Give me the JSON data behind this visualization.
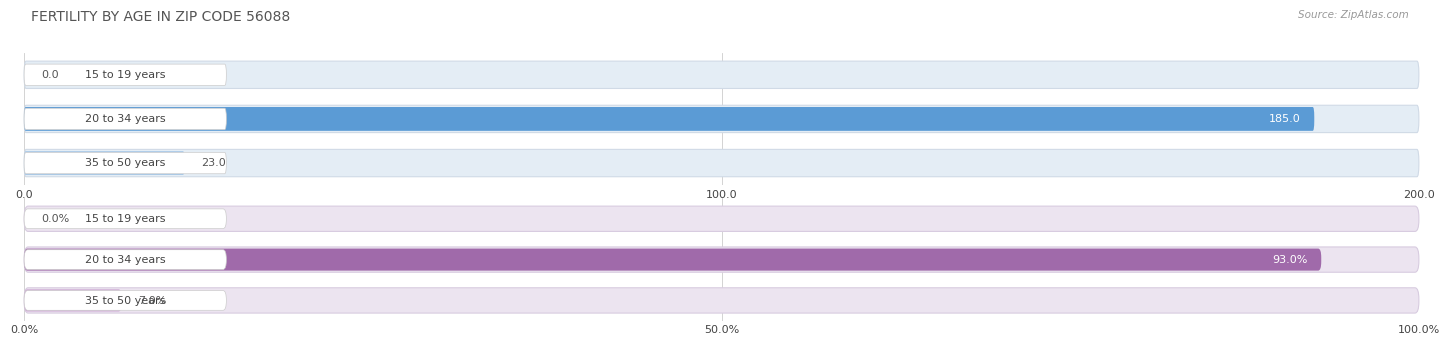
{
  "title": "FERTILITY BY AGE IN ZIP CODE 56088",
  "source": "Source: ZipAtlas.com",
  "top_chart": {
    "categories": [
      "15 to 19 years",
      "20 to 34 years",
      "35 to 50 years"
    ],
    "values": [
      0.0,
      185.0,
      23.0
    ],
    "xlim": [
      0,
      200
    ],
    "xticks": [
      0.0,
      100.0,
      200.0
    ],
    "xtick_labels": [
      "0.0",
      "100.0",
      "200.0"
    ],
    "bar_color_main": "#5b9bd5",
    "bar_color_light": "#a8c8e8",
    "bar_bg_color": "#e4edf5",
    "bar_bg_edge": "#d0dae6"
  },
  "bottom_chart": {
    "categories": [
      "15 to 19 years",
      "20 to 34 years",
      "35 to 50 years"
    ],
    "values": [
      0.0,
      93.0,
      7.0
    ],
    "xlim": [
      0,
      100
    ],
    "xticks": [
      0.0,
      50.0,
      100.0
    ],
    "xtick_labels": [
      "0.0%",
      "50.0%",
      "100.0%"
    ],
    "bar_color_main": "#a06aaa",
    "bar_color_light": "#c9a0d0",
    "bar_bg_color": "#ece4f0",
    "bar_bg_edge": "#d8cce0"
  },
  "label_fontsize": 8,
  "value_fontsize": 8,
  "tick_fontsize": 8,
  "title_fontsize": 10,
  "source_fontsize": 7.5,
  "background_color": "#ffffff",
  "bar_height": 0.62,
  "label_color": "#444444",
  "value_color_inside": "#ffffff",
  "value_color_outside": "#555555",
  "label_pill_color": "#ffffff",
  "label_pill_edge": "#cccccc"
}
